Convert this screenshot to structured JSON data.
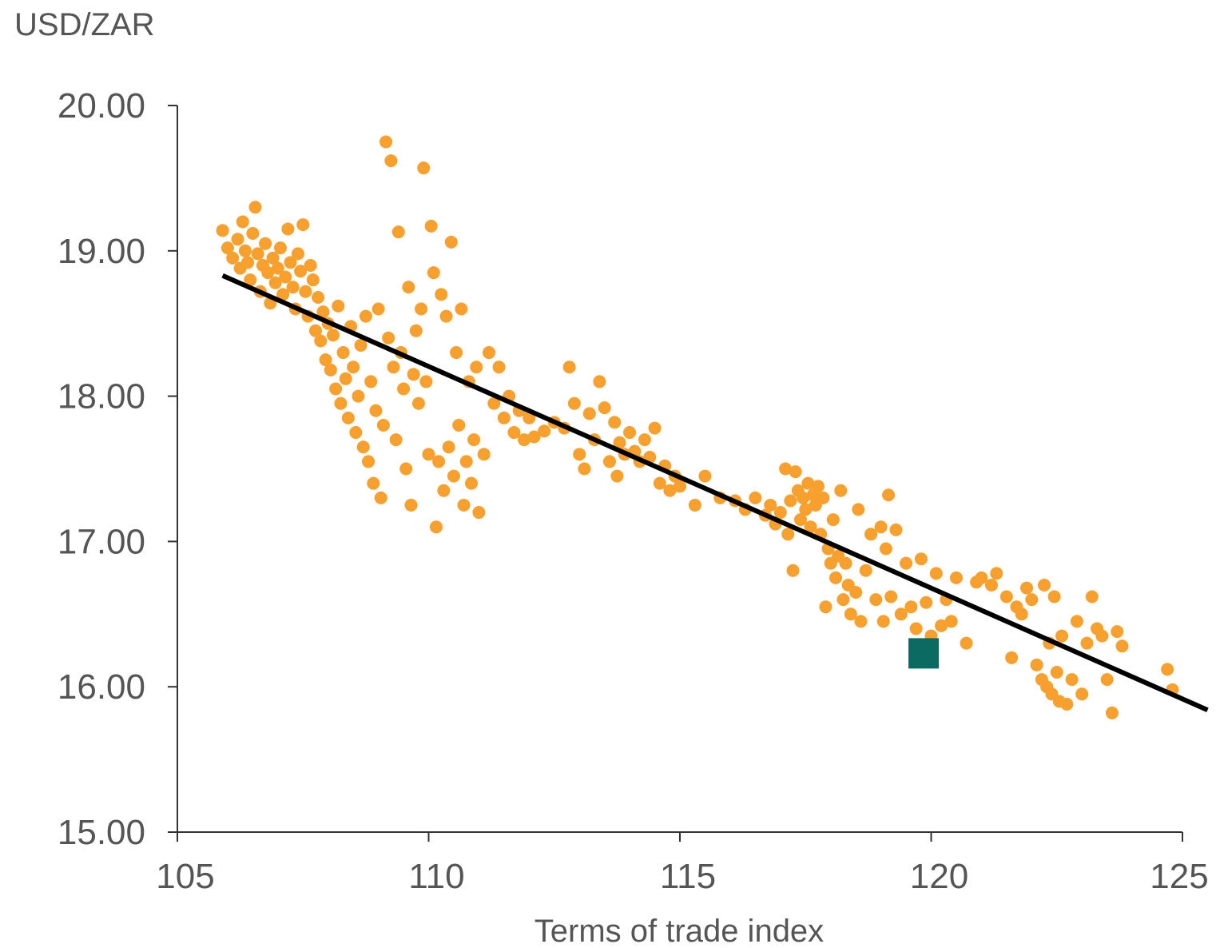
{
  "chart_data": {
    "type": "scatter",
    "title": "",
    "ylabel": "USD/ZAR",
    "xlabel": "Terms of trade index",
    "xlim": [
      105,
      125
    ],
    "ylim": [
      15,
      20
    ],
    "x_ticks": [
      105,
      110,
      115,
      120,
      125
    ],
    "y_ticks": [
      15,
      16,
      17,
      18,
      19,
      20
    ],
    "x_tick_labels": [
      "105",
      "110",
      "115",
      "120",
      "125"
    ],
    "y_tick_labels": [
      "15.00",
      "16.00",
      "17.00",
      "18.00",
      "19.00",
      "20.00"
    ],
    "grid": false,
    "legend": "none",
    "colors": {
      "points": "#F7A02D",
      "trend": "#000000",
      "highlight": "#0B6B63",
      "axis": "#333333"
    },
    "trendline": {
      "x": [
        105.9,
        125.5
      ],
      "y": [
        18.83,
        15.84
      ]
    },
    "highlight_point": {
      "x": 119.85,
      "y": 16.23,
      "marker": "square"
    },
    "points": [
      [
        105.9,
        19.14
      ],
      [
        106.0,
        19.02
      ],
      [
        106.1,
        18.95
      ],
      [
        106.2,
        19.08
      ],
      [
        106.25,
        18.88
      ],
      [
        106.3,
        19.2
      ],
      [
        106.35,
        19.0
      ],
      [
        106.4,
        18.92
      ],
      [
        106.45,
        18.8
      ],
      [
        106.5,
        19.12
      ],
      [
        106.55,
        19.3
      ],
      [
        106.6,
        18.98
      ],
      [
        106.65,
        18.72
      ],
      [
        106.7,
        18.9
      ],
      [
        106.75,
        19.05
      ],
      [
        106.8,
        18.85
      ],
      [
        106.85,
        18.64
      ],
      [
        106.9,
        18.95
      ],
      [
        106.95,
        18.78
      ],
      [
        107.0,
        18.88
      ],
      [
        107.05,
        19.02
      ],
      [
        107.1,
        18.7
      ],
      [
        107.15,
        18.82
      ],
      [
        107.2,
        19.15
      ],
      [
        107.25,
        18.92
      ],
      [
        107.3,
        18.75
      ],
      [
        107.35,
        18.6
      ],
      [
        107.4,
        18.98
      ],
      [
        107.45,
        18.86
      ],
      [
        107.5,
        19.18
      ],
      [
        107.55,
        18.72
      ],
      [
        107.6,
        18.55
      ],
      [
        107.65,
        18.9
      ],
      [
        107.7,
        18.8
      ],
      [
        107.75,
        18.45
      ],
      [
        107.8,
        18.68
      ],
      [
        107.85,
        18.38
      ],
      [
        107.9,
        18.58
      ],
      [
        107.95,
        18.25
      ],
      [
        108.0,
        18.5
      ],
      [
        108.05,
        18.18
      ],
      [
        108.1,
        18.42
      ],
      [
        108.15,
        18.05
      ],
      [
        108.2,
        18.62
      ],
      [
        108.25,
        17.95
      ],
      [
        108.3,
        18.3
      ],
      [
        108.35,
        18.12
      ],
      [
        108.4,
        17.85
      ],
      [
        108.45,
        18.48
      ],
      [
        108.5,
        18.2
      ],
      [
        108.55,
        17.75
      ],
      [
        108.6,
        18.0
      ],
      [
        108.65,
        18.35
      ],
      [
        108.7,
        17.65
      ],
      [
        108.75,
        18.55
      ],
      [
        108.8,
        17.55
      ],
      [
        108.85,
        18.1
      ],
      [
        108.9,
        17.4
      ],
      [
        108.95,
        17.9
      ],
      [
        109.0,
        18.6
      ],
      [
        109.05,
        17.3
      ],
      [
        109.1,
        17.8
      ],
      [
        109.15,
        19.75
      ],
      [
        109.2,
        18.4
      ],
      [
        109.25,
        19.62
      ],
      [
        109.3,
        18.2
      ],
      [
        109.35,
        17.7
      ],
      [
        109.4,
        19.13
      ],
      [
        109.45,
        18.3
      ],
      [
        109.5,
        18.05
      ],
      [
        109.55,
        17.5
      ],
      [
        109.6,
        18.75
      ],
      [
        109.65,
        17.25
      ],
      [
        109.7,
        18.15
      ],
      [
        109.75,
        18.45
      ],
      [
        109.8,
        17.95
      ],
      [
        109.85,
        18.6
      ],
      [
        109.9,
        19.57
      ],
      [
        109.95,
        18.1
      ],
      [
        110.0,
        17.6
      ],
      [
        110.05,
        19.17
      ],
      [
        110.1,
        18.85
      ],
      [
        110.15,
        17.1
      ],
      [
        110.2,
        17.55
      ],
      [
        110.25,
        18.7
      ],
      [
        110.3,
        17.35
      ],
      [
        110.35,
        18.55
      ],
      [
        110.4,
        17.65
      ],
      [
        110.45,
        19.06
      ],
      [
        110.5,
        17.45
      ],
      [
        110.55,
        18.3
      ],
      [
        110.6,
        17.8
      ],
      [
        110.65,
        18.6
      ],
      [
        110.7,
        17.25
      ],
      [
        110.75,
        17.55
      ],
      [
        110.8,
        18.1
      ],
      [
        110.85,
        17.4
      ],
      [
        110.9,
        17.7
      ],
      [
        110.95,
        18.2
      ],
      [
        111.0,
        17.2
      ],
      [
        111.1,
        17.6
      ],
      [
        111.2,
        18.3
      ],
      [
        111.3,
        17.95
      ],
      [
        111.4,
        18.2
      ],
      [
        111.5,
        17.85
      ],
      [
        111.6,
        18.0
      ],
      [
        111.7,
        17.75
      ],
      [
        111.8,
        17.9
      ],
      [
        111.9,
        17.7
      ],
      [
        112.0,
        17.85
      ],
      [
        112.1,
        17.72
      ],
      [
        112.3,
        17.76
      ],
      [
        112.5,
        17.82
      ],
      [
        112.7,
        17.78
      ],
      [
        112.8,
        18.2
      ],
      [
        112.9,
        17.95
      ],
      [
        113.0,
        17.6
      ],
      [
        113.1,
        17.5
      ],
      [
        113.2,
        17.88
      ],
      [
        113.3,
        17.7
      ],
      [
        113.4,
        18.1
      ],
      [
        113.5,
        17.92
      ],
      [
        113.6,
        17.55
      ],
      [
        113.7,
        17.82
      ],
      [
        113.75,
        17.45
      ],
      [
        113.8,
        17.68
      ],
      [
        113.9,
        17.6
      ],
      [
        114.0,
        17.75
      ],
      [
        114.1,
        17.62
      ],
      [
        114.2,
        17.55
      ],
      [
        114.3,
        17.7
      ],
      [
        114.4,
        17.58
      ],
      [
        114.5,
        17.78
      ],
      [
        114.6,
        17.4
      ],
      [
        114.7,
        17.52
      ],
      [
        114.8,
        17.35
      ],
      [
        114.9,
        17.45
      ],
      [
        115.0,
        17.38
      ],
      [
        115.3,
        17.25
      ],
      [
        115.5,
        17.45
      ],
      [
        115.8,
        17.3
      ],
      [
        116.1,
        17.28
      ],
      [
        116.3,
        17.22
      ],
      [
        116.5,
        17.3
      ],
      [
        116.7,
        17.18
      ],
      [
        116.8,
        17.25
      ],
      [
        116.9,
        17.12
      ],
      [
        117.0,
        17.2
      ],
      [
        117.1,
        17.5
      ],
      [
        117.15,
        17.05
      ],
      [
        117.2,
        17.28
      ],
      [
        117.25,
        16.8
      ],
      [
        117.3,
        17.48
      ],
      [
        117.35,
        17.35
      ],
      [
        117.4,
        17.15
      ],
      [
        117.45,
        17.3
      ],
      [
        117.5,
        17.22
      ],
      [
        117.55,
        17.4
      ],
      [
        117.6,
        17.1
      ],
      [
        117.65,
        17.32
      ],
      [
        117.7,
        17.25
      ],
      [
        117.75,
        17.38
      ],
      [
        117.8,
        17.05
      ],
      [
        117.85,
        17.3
      ],
      [
        117.9,
        16.55
      ],
      [
        117.95,
        16.95
      ],
      [
        118.0,
        16.85
      ],
      [
        118.05,
        17.15
      ],
      [
        118.1,
        16.75
      ],
      [
        118.15,
        16.9
      ],
      [
        118.2,
        17.35
      ],
      [
        118.25,
        16.6
      ],
      [
        118.3,
        16.85
      ],
      [
        118.35,
        16.7
      ],
      [
        118.4,
        16.5
      ],
      [
        118.5,
        16.65
      ],
      [
        118.55,
        17.22
      ],
      [
        118.6,
        16.45
      ],
      [
        118.7,
        16.8
      ],
      [
        118.8,
        17.05
      ],
      [
        118.9,
        16.6
      ],
      [
        119.0,
        17.1
      ],
      [
        119.05,
        16.45
      ],
      [
        119.1,
        16.95
      ],
      [
        119.15,
        17.32
      ],
      [
        119.2,
        16.62
      ],
      [
        119.3,
        17.08
      ],
      [
        119.4,
        16.5
      ],
      [
        119.5,
        16.85
      ],
      [
        119.6,
        16.55
      ],
      [
        119.7,
        16.4
      ],
      [
        119.8,
        16.88
      ],
      [
        119.9,
        16.58
      ],
      [
        120.0,
        16.35
      ],
      [
        120.1,
        16.78
      ],
      [
        120.2,
        16.42
      ],
      [
        120.3,
        16.6
      ],
      [
        120.4,
        16.45
      ],
      [
        120.5,
        16.75
      ],
      [
        120.7,
        16.3
      ],
      [
        120.9,
        16.72
      ],
      [
        121.0,
        16.75
      ],
      [
        121.2,
        16.7
      ],
      [
        121.3,
        16.78
      ],
      [
        121.5,
        16.62
      ],
      [
        121.6,
        16.2
      ],
      [
        121.7,
        16.55
      ],
      [
        121.8,
        16.5
      ],
      [
        121.9,
        16.68
      ],
      [
        122.0,
        16.6
      ],
      [
        122.1,
        16.15
      ],
      [
        122.2,
        16.05
      ],
      [
        122.25,
        16.7
      ],
      [
        122.3,
        16.0
      ],
      [
        122.35,
        16.3
      ],
      [
        122.4,
        15.95
      ],
      [
        122.45,
        16.62
      ],
      [
        122.5,
        16.1
      ],
      [
        122.55,
        15.9
      ],
      [
        122.6,
        16.35
      ],
      [
        122.7,
        15.88
      ],
      [
        122.8,
        16.05
      ],
      [
        122.9,
        16.45
      ],
      [
        123.0,
        15.95
      ],
      [
        123.1,
        16.3
      ],
      [
        123.2,
        16.62
      ],
      [
        123.3,
        16.4
      ],
      [
        123.4,
        16.35
      ],
      [
        123.5,
        16.05
      ],
      [
        123.6,
        15.82
      ],
      [
        123.7,
        16.38
      ],
      [
        123.8,
        16.28
      ],
      [
        124.7,
        16.12
      ],
      [
        124.8,
        15.98
      ]
    ]
  }
}
